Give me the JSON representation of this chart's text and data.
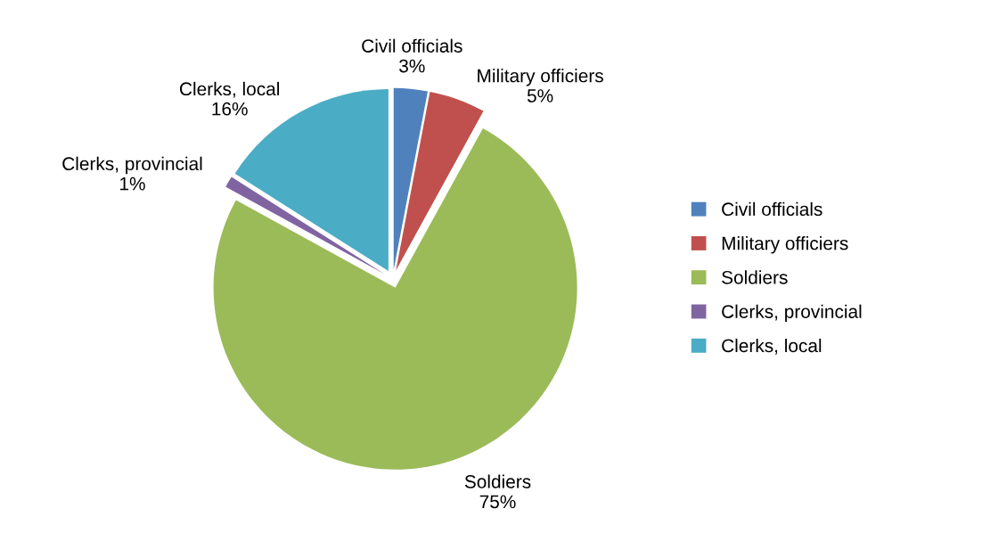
{
  "chart_data": {
    "type": "pie",
    "categories": [
      "Civil officials",
      "Military officiers",
      "Soldiers",
      "Clerks, provincial",
      "Clerks, local"
    ],
    "values": [
      3,
      5,
      75,
      1,
      16
    ],
    "colors": [
      "#4f81bd",
      "#c0504d",
      "#9bbb59",
      "#8064a2",
      "#4bacc6"
    ],
    "value_labels": [
      "3%",
      "5%",
      "75%",
      "1%",
      "16%"
    ],
    "legend": "right"
  }
}
